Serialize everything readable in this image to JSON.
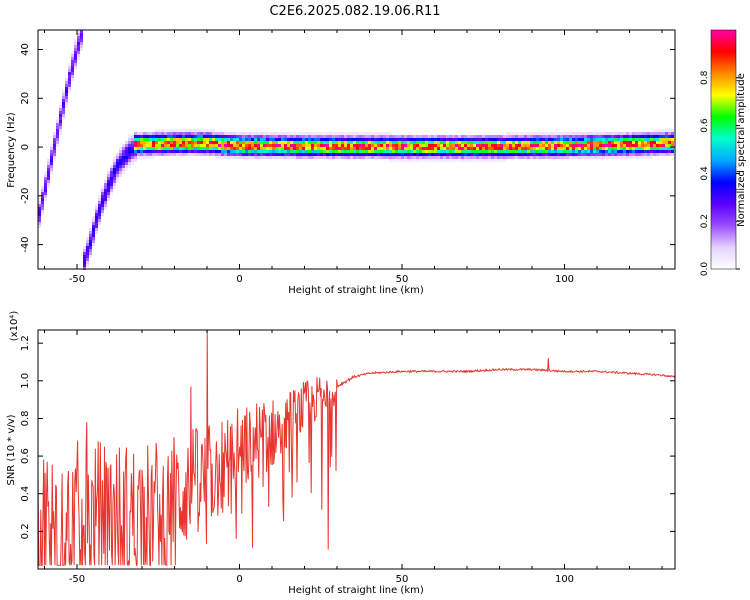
{
  "title": "C2E6.2025.082.19.06.R11",
  "colors": {
    "snr_line": "#e8352e",
    "axis": "#000000",
    "colormap": [
      "#ffffff",
      "#e6d2ff",
      "#9a4dff",
      "#5a00ff",
      "#0000ff",
      "#00aaff",
      "#00ffcc",
      "#00ff00",
      "#ffff00",
      "#ff8800",
      "#ff0000",
      "#ff00aa"
    ]
  },
  "chart_data": [
    {
      "type": "heatmap",
      "name": "spectrogram",
      "xlabel": "Height of straight line (km)",
      "ylabel": "Frequency (Hz)",
      "xlim": [
        -62,
        134
      ],
      "ylim": [
        -50,
        48
      ],
      "xticks": [
        -50,
        0,
        50,
        100
      ],
      "yticks": [
        -40,
        -20,
        0,
        20,
        40
      ],
      "xtick_labels": [
        "-50",
        "0",
        "50",
        "100"
      ],
      "ytick_labels": [
        "-40",
        "-20",
        "0",
        "20",
        "40"
      ],
      "colorbar": {
        "label": "Normalized spectral amplitude",
        "range": [
          0,
          1
        ],
        "ticks": [
          0.0,
          0.2,
          0.4,
          0.6,
          0.8
        ],
        "tick_labels": [
          "0.0",
          "0.2",
          "0.4",
          "0.6",
          "0.8"
        ]
      },
      "traces": [
        {
          "name": "steep-branch-upper",
          "x": [
            -62,
            -60,
            -58,
            -56,
            -54,
            -52,
            -50,
            -48
          ],
          "y": [
            -30,
            -18,
            -6,
            6,
            18,
            30,
            40,
            48
          ],
          "width_hz": 3,
          "amplitude": 0.3
        },
        {
          "name": "steep-branch-lower",
          "x": [
            -48,
            -46,
            -44,
            -42,
            -40,
            -38,
            -36,
            -34,
            -32
          ],
          "y": [
            -48,
            -40,
            -30,
            -22,
            -15,
            -9,
            -5,
            -2,
            0
          ],
          "width_hz": 3,
          "amplitude": 0.35
        },
        {
          "name": "plateau",
          "x": [
            -32,
            -20,
            -10,
            0,
            20,
            50,
            80,
            100,
            120,
            134
          ],
          "y": [
            1,
            1.5,
            1.5,
            0.5,
            0.2,
            0,
            0,
            0.3,
            1,
            1.5
          ],
          "width_hz": 2.2,
          "amplitude": 0.95
        }
      ]
    },
    {
      "type": "line",
      "name": "snr",
      "xlabel": "Height of straight line (km)",
      "ylabel": "SNR (10 * v/v)",
      "multiplier_label": "(x10⁴)",
      "xlim": [
        -62,
        134
      ],
      "ylim": [
        0.0,
        1.27
      ],
      "xticks": [
        -50,
        0,
        50,
        100
      ],
      "yticks": [
        0.2,
        0.4,
        0.6,
        0.8,
        1.0,
        1.2
      ],
      "xtick_labels": [
        "-50",
        "0",
        "50",
        "100"
      ],
      "ytick_labels": [
        "0.2",
        "0.4",
        "0.6",
        "0.8",
        "1.0",
        "1.2"
      ],
      "series": [
        {
          "name": "SNR envelope",
          "x": [
            -62,
            -55,
            -50,
            -45,
            -40,
            -35,
            -30,
            -25,
            -20,
            -15,
            -12,
            -10,
            -5,
            0,
            5,
            10,
            15,
            20,
            25,
            30,
            35,
            40,
            50,
            60,
            70,
            80,
            90,
            100,
            110,
            120,
            130,
            134
          ],
          "y": [
            0.15,
            0.17,
            0.2,
            0.23,
            0.25,
            0.27,
            0.3,
            0.33,
            0.38,
            0.45,
            0.45,
            0.48,
            0.55,
            0.63,
            0.68,
            0.72,
            0.78,
            0.86,
            0.92,
            0.97,
            1.02,
            1.04,
            1.05,
            1.05,
            1.05,
            1.06,
            1.06,
            1.05,
            1.05,
            1.04,
            1.03,
            1.02
          ]
        }
      ],
      "spikes": [
        {
          "x": -10,
          "y": 1.27
        },
        {
          "x": -15,
          "y": 0.97
        },
        {
          "x": -47,
          "y": 0.78
        },
        {
          "x": 9,
          "y": 0.33
        },
        {
          "x": 95,
          "y": 1.12
        }
      ]
    }
  ]
}
